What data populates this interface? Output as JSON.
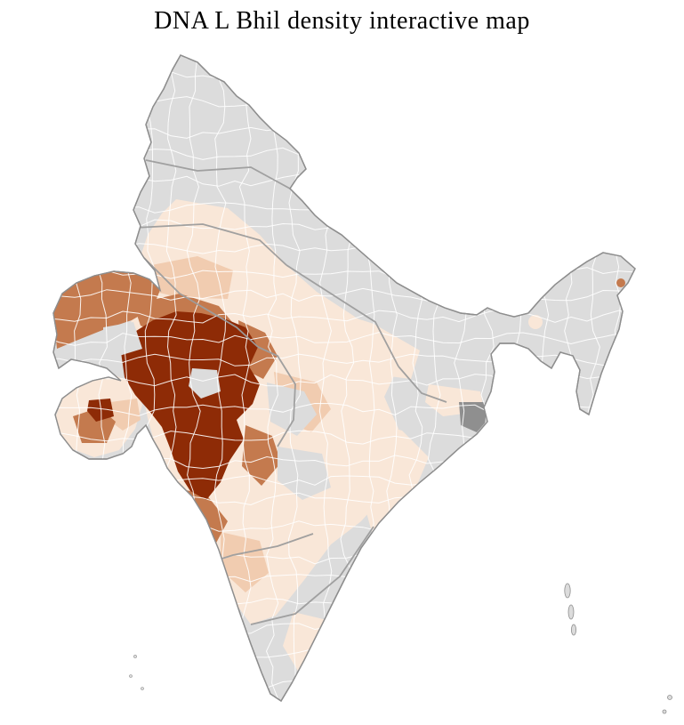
{
  "page": {
    "title": "DNA L Bhil density interactive map"
  },
  "map": {
    "colors": {
      "background": "#ffffff",
      "no_data": "#dcdcdc",
      "no_data_dark": "#8f8f8f",
      "coast_border": "#8e8e8e",
      "state_border": "#9c9c9c",
      "district_border": "#ffffff",
      "density_very_low": "#f9e7d8",
      "density_low": "#f1ccb0",
      "density_medium": "#c47a4e",
      "density_high": "#8e2b06"
    }
  }
}
